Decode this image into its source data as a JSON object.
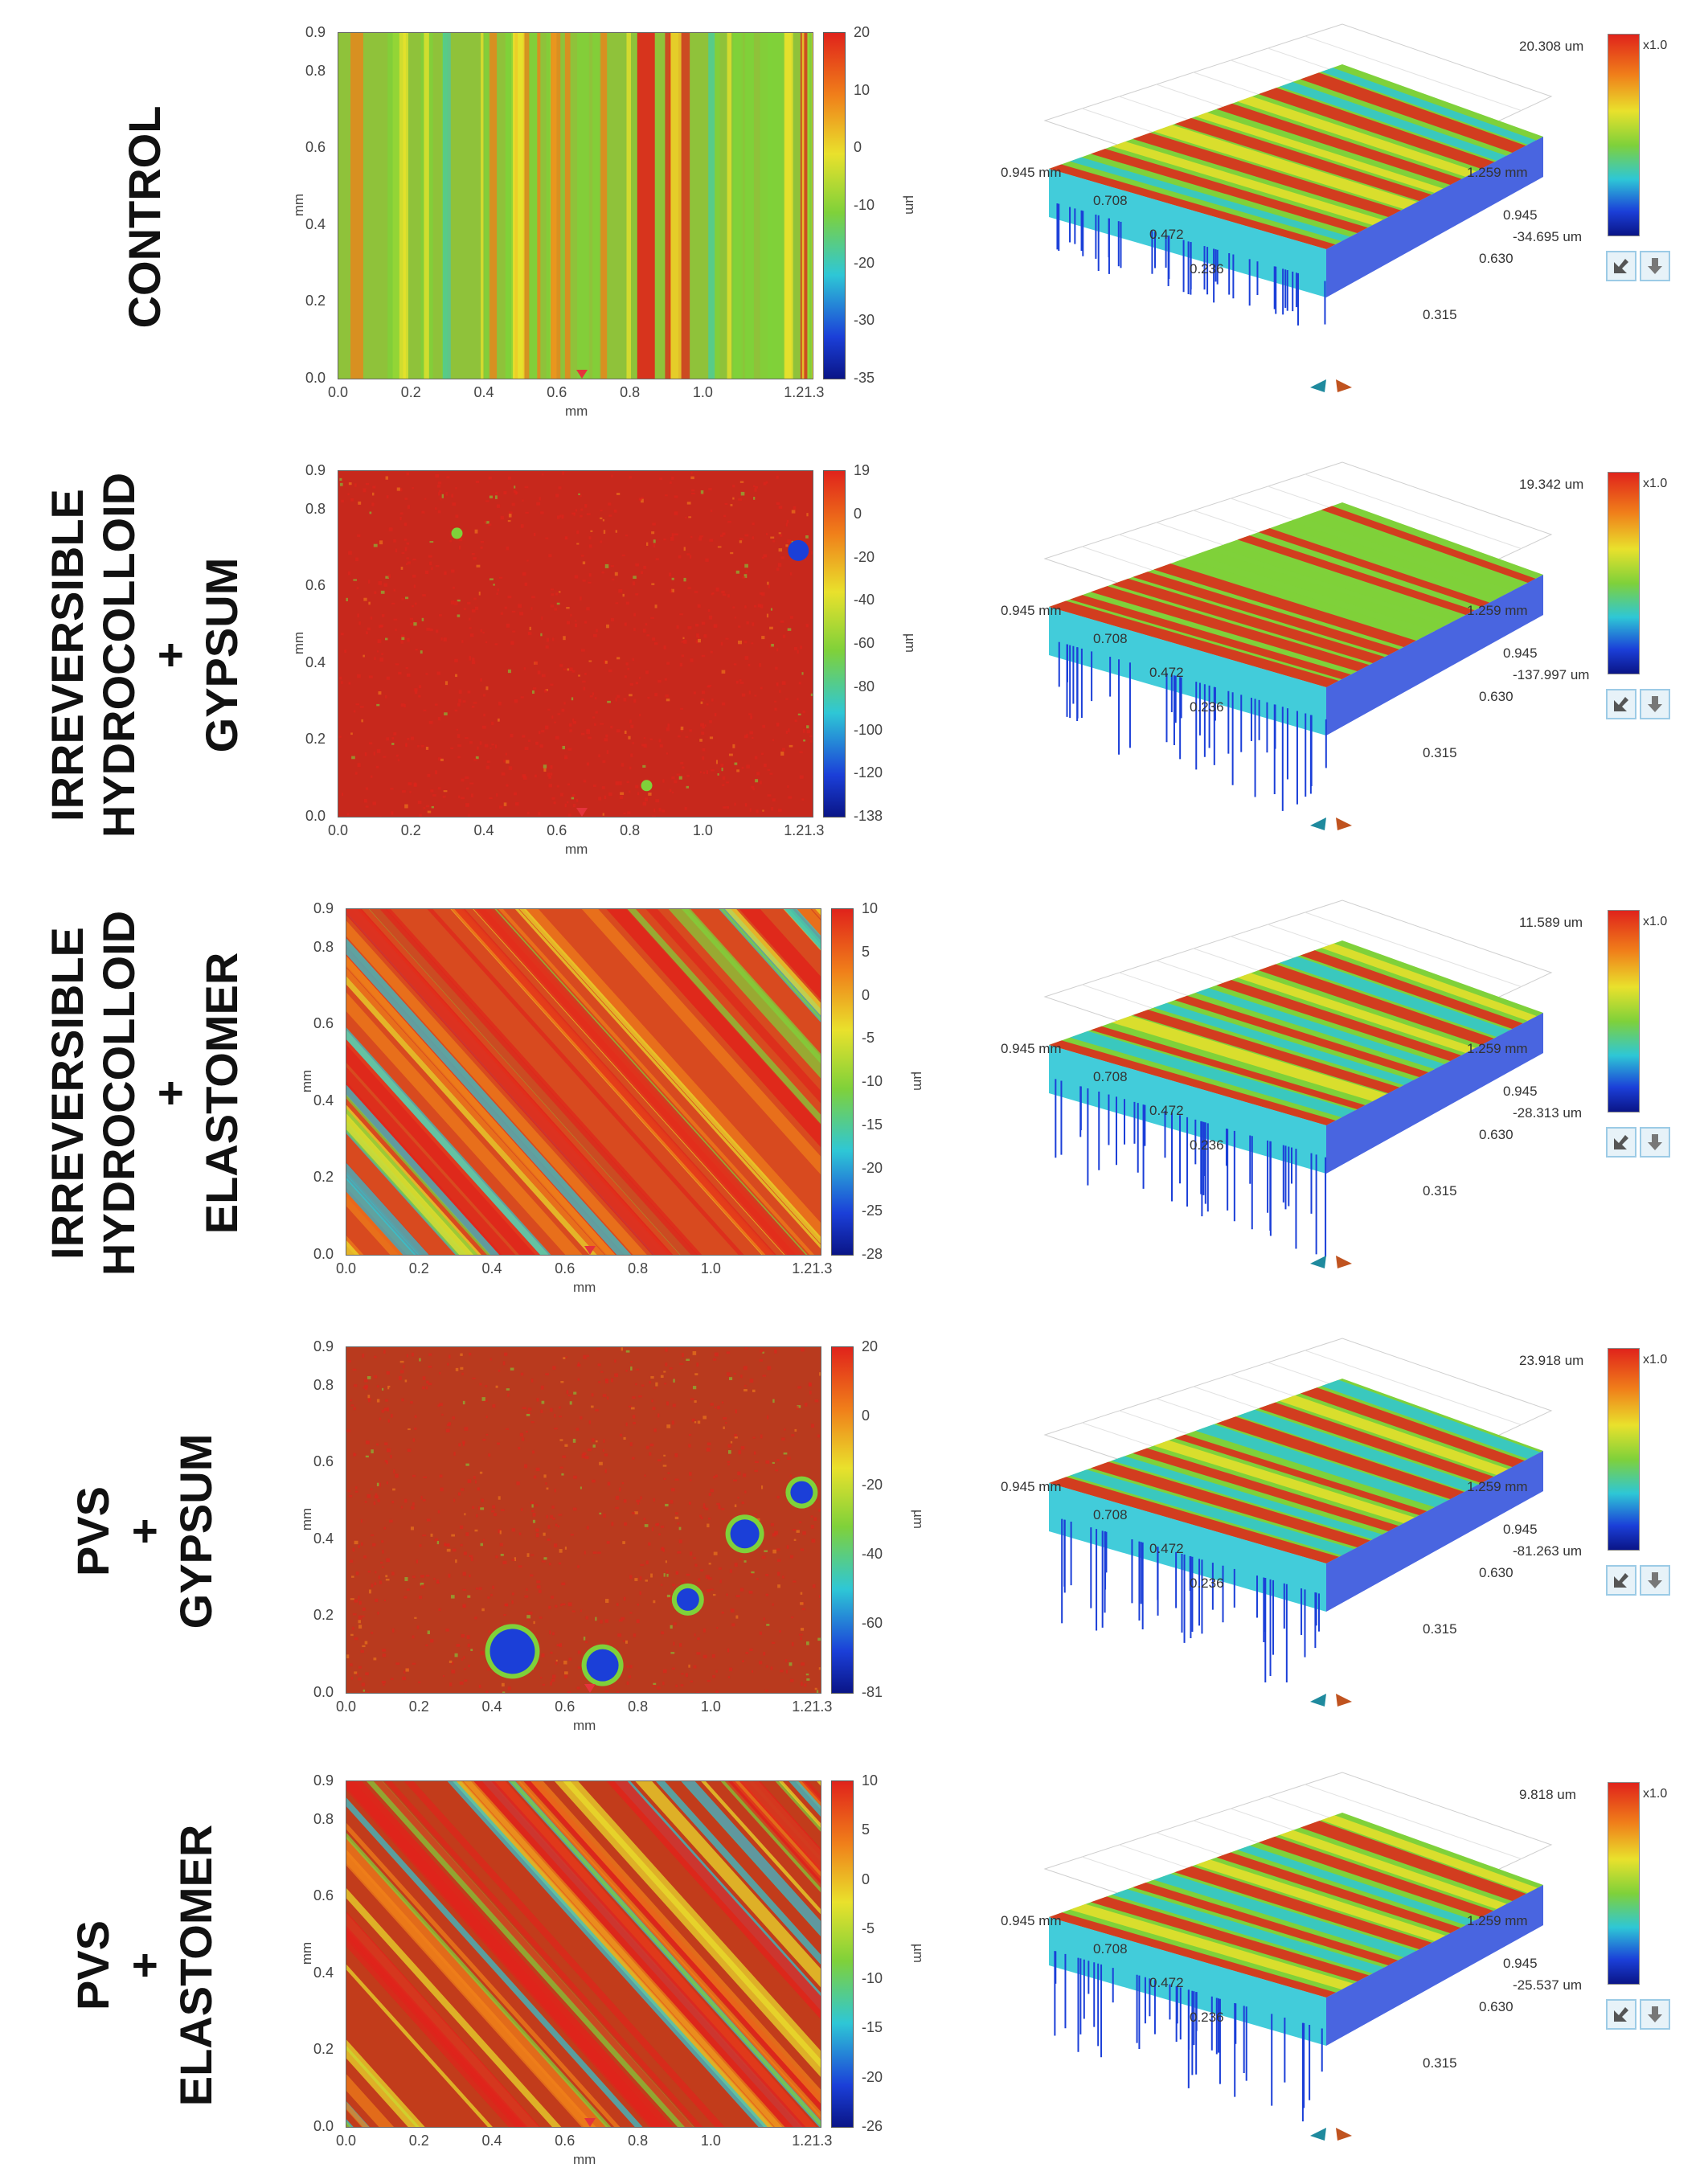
{
  "figure": {
    "rows": [
      {
        "label_lines": [
          "CONTROL"
        ],
        "map2d": {
          "x_ticks": [
            "0.0",
            "0.2",
            "0.4",
            "0.6",
            "0.8",
            "1.0",
            "1.21.3"
          ],
          "y_ticks": [
            "0.0",
            "0.2",
            "0.4",
            "0.6",
            "0.8",
            "0.9"
          ],
          "x_title": "mm",
          "y_title": "mm",
          "cbar_ticks": [
            "20",
            "10",
            "0",
            "-10",
            "-20",
            "-30",
            "-35"
          ],
          "cbar_unit": "µm",
          "pattern": "vertical",
          "dominant": "#8fc23a"
        },
        "view3d": {
          "max_readout": "20.308 um",
          "min_readout": "-34.695 um",
          "scale": "x1.0",
          "y_axis_ticks": [
            "0.945 mm",
            "0.708",
            "0.472",
            "0.236"
          ],
          "x_axis_ticks": [
            "1.259 mm",
            "0.945",
            "0.630",
            "0.315"
          ]
        }
      },
      {
        "label_lines": [
          "IRREVERSIBLE",
          "HYDROCOLLOID",
          "+",
          "GYPSUM"
        ],
        "map2d": {
          "x_ticks": [
            "0.0",
            "0.2",
            "0.4",
            "0.6",
            "0.8",
            "1.0",
            "1.21.3"
          ],
          "y_ticks": [
            "0.0",
            "0.2",
            "0.4",
            "0.6",
            "0.8",
            "0.9"
          ],
          "x_title": "mm",
          "y_title": "mm",
          "cbar_ticks": [
            "19",
            "0",
            "-20",
            "-40",
            "-60",
            "-80",
            "-100",
            "-120",
            "-138"
          ],
          "cbar_unit": "µm",
          "pattern": "flat",
          "dominant": "#c7281c"
        },
        "view3d": {
          "max_readout": "19.342 um",
          "min_readout": "-137.997 um",
          "scale": "x1.0",
          "y_axis_ticks": [
            "0.945 mm",
            "0.708",
            "0.472",
            "0.236"
          ],
          "x_axis_ticks": [
            "1.259 mm",
            "0.945",
            "0.630",
            "0.315"
          ]
        }
      },
      {
        "label_lines": [
          "IRREVERSIBLE",
          "HYDROCOLLOID",
          "+",
          "ELASTOMER"
        ],
        "map2d": {
          "x_ticks": [
            "0.0",
            "0.2",
            "0.4",
            "0.6",
            "0.8",
            "1.0",
            "1.21.3"
          ],
          "y_ticks": [
            "0.0",
            "0.2",
            "0.4",
            "0.6",
            "0.8",
            "0.9"
          ],
          "x_title": "mm",
          "y_title": "mm",
          "cbar_ticks": [
            "10",
            "5",
            "0",
            "-5",
            "-10",
            "-15",
            "-20",
            "-25",
            "-28"
          ],
          "cbar_unit": "µm",
          "pattern": "diagonal",
          "dominant": "#d84a1f"
        },
        "view3d": {
          "max_readout": "11.589 um",
          "min_readout": "-28.313 um",
          "scale": "x1.0",
          "y_axis_ticks": [
            "0.945 mm",
            "0.708",
            "0.472",
            "0.236"
          ],
          "x_axis_ticks": [
            "1.259 mm",
            "0.945",
            "0.630",
            "0.315"
          ]
        }
      },
      {
        "label_lines": [
          "PVS",
          "+",
          "GYPSUM"
        ],
        "map2d": {
          "x_ticks": [
            "0.0",
            "0.2",
            "0.4",
            "0.6",
            "0.8",
            "1.0",
            "1.21.3"
          ],
          "y_ticks": [
            "0.0",
            "0.2",
            "0.4",
            "0.6",
            "0.8",
            "0.9"
          ],
          "x_title": "mm",
          "y_title": "mm",
          "cbar_ticks": [
            "20",
            "0",
            "-20",
            "-40",
            "-60",
            "-81"
          ],
          "cbar_unit": "µm",
          "pattern": "pits",
          "dominant": "#b93a1e"
        },
        "view3d": {
          "max_readout": "23.918 um",
          "min_readout": "-81.263 um",
          "scale": "x1.0",
          "y_axis_ticks": [
            "0.945 mm",
            "0.708",
            "0.472",
            "0.236"
          ],
          "x_axis_ticks": [
            "1.259 mm",
            "0.945",
            "0.630",
            "0.315"
          ]
        }
      },
      {
        "label_lines": [
          "PVS",
          "+",
          "ELASTOMER"
        ],
        "map2d": {
          "x_ticks": [
            "0.0",
            "0.2",
            "0.4",
            "0.6",
            "0.8",
            "1.0",
            "1.21.3"
          ],
          "y_ticks": [
            "0.0",
            "0.2",
            "0.4",
            "0.6",
            "0.8",
            "0.9"
          ],
          "x_title": "mm",
          "y_title": "mm",
          "cbar_ticks": [
            "10",
            "5",
            "0",
            "-5",
            "-10",
            "-15",
            "-20",
            "-26"
          ],
          "cbar_unit": "µm",
          "pattern": "diagonal",
          "dominant": "#c23c1b"
        },
        "view3d": {
          "max_readout": "9.818 um",
          "min_readout": "-25.537 um",
          "scale": "x1.0",
          "y_axis_ticks": [
            "0.945 mm",
            "0.708",
            "0.472",
            "0.236"
          ],
          "x_axis_ticks": [
            "1.259 mm",
            "0.945",
            "0.630",
            "0.315"
          ]
        }
      }
    ],
    "colors": {
      "red": "#e0231b",
      "orange": "#f07f1a",
      "yellow": "#e9e12c",
      "green": "#7fd13a",
      "cyan": "#2ec7d6",
      "blue": "#1b3fd8",
      "navy": "#0a1587"
    }
  }
}
